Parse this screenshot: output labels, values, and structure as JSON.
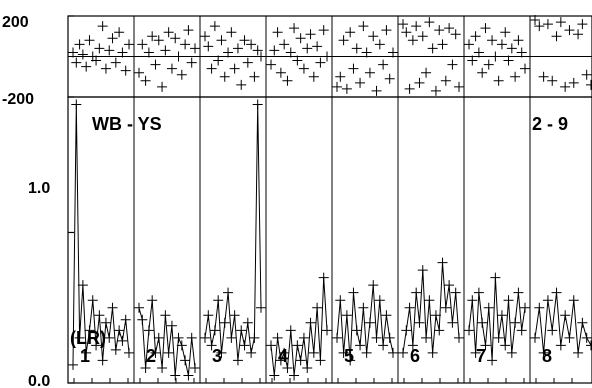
{
  "chart_data": {
    "type": "scatter",
    "residual_axis": {
      "ylim": [
        -200,
        200
      ],
      "tick_labels": [
        "200",
        "-200"
      ]
    },
    "main_axis": {
      "ylim": [
        0.0,
        1.9
      ],
      "tick_labels": [
        "1.0",
        "0.0"
      ]
    },
    "labels": {
      "left": "WB - YS",
      "right": "2 - 9",
      "unit": "(LR)"
    },
    "panels": [
      {
        "label": "1",
        "values": [
          0.12,
          1.85,
          0.3,
          0.65,
          0.2,
          0.35,
          0.55,
          0.25,
          0.45,
          0.15,
          0.4,
          0.3,
          0.5,
          0.22,
          0.35,
          0.28,
          0.42,
          0.2
        ],
        "residuals": [
          20,
          -30,
          60,
          10,
          -50,
          80,
          0,
          -20,
          40,
          150,
          -60,
          30,
          90,
          -30,
          120,
          20,
          -70,
          60
        ]
      },
      {
        "label": "2",
        "values": [
          0.5,
          0.42,
          0.1,
          0.35,
          0.55,
          0.2,
          0.3,
          0.1,
          0.45,
          0.2,
          0.38,
          0.05,
          0.3,
          0.25,
          0.15,
          0.05,
          0.3,
          0.1
        ],
        "residuals": [
          -80,
          60,
          -120,
          20,
          100,
          -40,
          80,
          -150,
          30,
          120,
          -60,
          90,
          0,
          -90,
          60,
          130,
          -30,
          40
        ]
      },
      {
        "label": "3",
        "values": [
          0.3,
          0.45,
          0.25,
          0.35,
          0.55,
          0.2,
          0.4,
          0.6,
          0.3,
          0.45,
          0.15,
          0.35,
          0.25,
          0.4,
          0.2,
          0.3,
          1.85,
          0.5
        ],
        "residuals": [
          100,
          50,
          -60,
          150,
          -20,
          80,
          -100,
          20,
          120,
          -60,
          40,
          -140,
          80,
          -30,
          60,
          -100,
          30,
          0
        ]
      },
      {
        "label": "4",
        "values": [
          0.25,
          0.05,
          0.3,
          0.15,
          0.2,
          0.1,
          0.35,
          0.05,
          0.25,
          0.15,
          0.3,
          0.1,
          0.4,
          0.2,
          0.5,
          0.15,
          0.7,
          0.35
        ],
        "residuals": [
          -40,
          30,
          120,
          -80,
          60,
          -120,
          20,
          140,
          -20,
          90,
          -60,
          40,
          110,
          -100,
          50,
          -30,
          130,
          0
        ]
      },
      {
        "label": "5",
        "values": [
          0.3,
          0.55,
          0.2,
          0.45,
          0.15,
          0.6,
          0.35,
          0.25,
          0.5,
          0.2,
          0.4,
          0.65,
          0.3,
          0.55,
          0.25,
          0.45,
          0.3,
          0.2
        ],
        "residuals": [
          -150,
          -100,
          80,
          -160,
          120,
          -60,
          40,
          -130,
          150,
          20,
          -80,
          100,
          -170,
          60,
          -40,
          130,
          -110,
          20
        ]
      },
      {
        "label": "6",
        "values": [
          0.2,
          0.35,
          0.5,
          0.25,
          0.6,
          0.4,
          0.75,
          0.3,
          0.55,
          0.2,
          0.45,
          0.35,
          0.8,
          0.5,
          0.65,
          0.4,
          0.6,
          0.3
        ],
        "residuals": [
          160,
          120,
          -160,
          80,
          150,
          -130,
          100,
          -80,
          170,
          40,
          -170,
          130,
          60,
          -120,
          140,
          -40,
          110,
          -150
        ]
      },
      {
        "label": "7",
        "values": [
          0.35,
          0.55,
          0.2,
          0.6,
          0.4,
          0.25,
          0.5,
          0.15,
          0.7,
          0.3,
          0.45,
          0.25,
          0.55,
          0.2,
          0.4,
          0.6,
          0.35,
          0.5
        ],
        "residuals": [
          60,
          -20,
          100,
          20,
          -80,
          140,
          -40,
          80,
          0,
          -120,
          60,
          120,
          -20,
          40,
          -100,
          80,
          20,
          -60
        ]
      },
      {
        "label": "8",
        "values": [
          0.3,
          0.5,
          0.2,
          0.55,
          0.35,
          0.6,
          0.25,
          0.45,
          0.3,
          0.55,
          0.2,
          0.4,
          0.3,
          0.25
        ],
        "residuals": [
          180,
          150,
          -100,
          160,
          -120,
          100,
          170,
          -150,
          130,
          -130,
          110,
          160,
          -90,
          -140
        ]
      }
    ]
  }
}
